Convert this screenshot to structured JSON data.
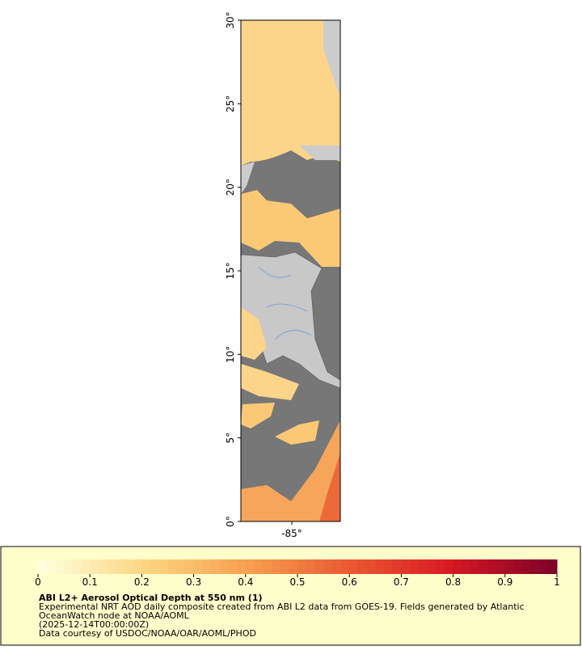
{
  "map": {
    "lat_ticks": [
      {
        "value": 0,
        "label": "0°"
      },
      {
        "value": 5,
        "label": "5°"
      },
      {
        "value": 10,
        "label": "10°"
      },
      {
        "value": 15,
        "label": "15°"
      },
      {
        "value": 20,
        "label": "20°"
      },
      {
        "value": 25,
        "label": "25°"
      },
      {
        "value": 30,
        "label": "30°"
      }
    ],
    "lat_range": [
      0,
      30
    ],
    "lon_ticks": [
      {
        "value": -85,
        "label": "-85°"
      }
    ]
  },
  "colorbar": {
    "range": [
      0,
      1
    ],
    "ticks": [
      0,
      0.1,
      0.2,
      0.3,
      0.4,
      0.5,
      0.6,
      0.7,
      0.8,
      0.9,
      1
    ]
  },
  "legend": {
    "title": "ABI L2+ Aerosol Optical Depth at 550 nm (1)",
    "lines": [
      "Experimental NRT AOD daily composite created from ABI L2 data from GOES-19. Fields generated by Atlantic",
      "OceanWatch node at NOAA/AOML",
      "(2025-12-14T00:00:00Z)",
      "Data courtesy of USDOC/NOAA/OAR/AOML/PHOD"
    ]
  }
}
